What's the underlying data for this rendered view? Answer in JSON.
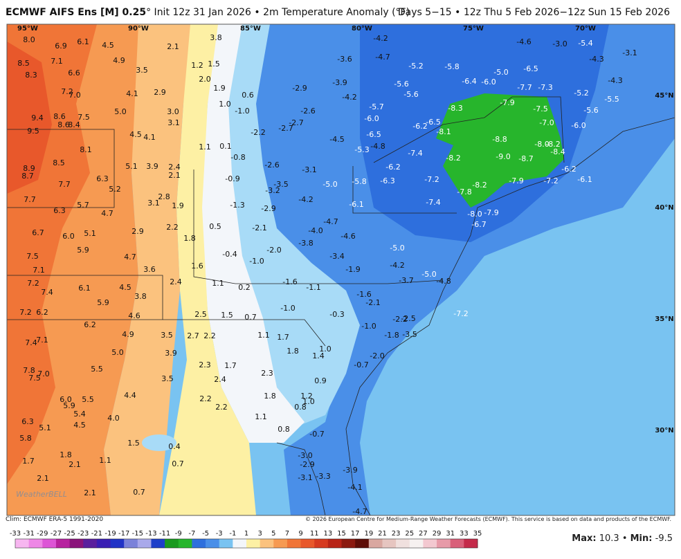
{
  "header": {
    "title": "ECMWF AIFS Ens [M] 0.25",
    "title_suffix": "° Init 12z 31 Jan 2026 • 2m Temperature Anomaly (°F)",
    "valid": "Days 5−15 • 12z Thu 5 Feb 2026−12z Sun 15 Feb 2026"
  },
  "map": {
    "longitudes": [
      "95°W",
      "90°W",
      "85°W",
      "80°W",
      "75°W",
      "70°W"
    ],
    "latitudes": [
      "45°N",
      "40°N",
      "35°N",
      "30°N"
    ],
    "logo": "WeatherBELL",
    "labels": [
      "8.0",
      "6.9",
      "6.1",
      "4.5",
      "2.1",
      "3.8",
      "8.5",
      "7.1",
      "4.9",
      "3.5",
      "1.2",
      "1.5",
      "8.3",
      "6.6",
      "2.0",
      "1.9",
      "0.6",
      "7.2",
      "7.0",
      "4.1",
      "2.9",
      "1.0",
      "-1.0",
      "9.4",
      "8.6",
      "7.5",
      "5.0",
      "3.0",
      "3.1",
      "9.5",
      "8.6",
      "8.4",
      "4.5",
      "4.1",
      "8.1",
      "1.1",
      "0.1",
      "-0.8",
      "8.5",
      "5.1",
      "3.9",
      "2.4",
      "2.1",
      "8.9",
      "8.7",
      "7.7",
      "6.3",
      "5.2",
      "-0.9",
      "7.7",
      "5.7",
      "4.7",
      "3.1",
      "2.8",
      "1.9",
      "-1.3",
      "6.3",
      "6.7",
      "6.0",
      "5.1",
      "2.9",
      "2.2",
      "1.8",
      "0.5",
      "7.5",
      "5.9",
      "4.7",
      "-0.4",
      "-1.0",
      "7.1",
      "3.6",
      "1.6",
      "7.2",
      "6.1",
      "4.5",
      "2.4",
      "1.1",
      "0.2",
      "7.4",
      "5.9",
      "3.8",
      "7.2",
      "6.2",
      "4.6",
      "2.5",
      "1.5",
      "0.7",
      "-1.0",
      "6.2",
      "7.4",
      "7.1",
      "4.9",
      "3.5",
      "2.7",
      "2.2",
      "1.1",
      "1.7",
      "5.0",
      "3.9",
      "1.8",
      "1.0",
      "1.4",
      "7.8",
      "7.5",
      "7.0",
      "5.5",
      "2.3",
      "1.7",
      "2.3",
      "3.5",
      "2.4",
      "0.9",
      "6.0",
      "5.9",
      "5.5",
      "4.4",
      "2.2",
      "1.8",
      "1.2",
      "1.0",
      "5.4",
      "4.5",
      "4.0",
      "2.2",
      "0.8",
      "6.3",
      "5.1",
      "1.1",
      "5.8",
      "1.5",
      "0.4",
      "0.8",
      "-0.7",
      "1.7",
      "1.8",
      "2.1",
      "1.1",
      "0.7",
      "-3.0",
      "-2.9",
      "2.1",
      "-3.3",
      "-3.1",
      "-3.9",
      "2.1",
      "0.7",
      "-4.1",
      "-4.7",
      "-4.2",
      "-4.6",
      "-3.0",
      "-5.4",
      "-3.1",
      "-3.6",
      "-4.7",
      "-5.2",
      "-5.8",
      "-4.3",
      "-6.5",
      "-5.0",
      "-2.9",
      "-3.9",
      "-5.6",
      "-6.4",
      "-6.0",
      "-7.7",
      "-7.3",
      "-4.3",
      "-5.2",
      "-4.2",
      "-5.6",
      "-5.7",
      "-7.9",
      "-7.5",
      "-5.5",
      "-8.3",
      "-2.6",
      "-2.7",
      "-2.7",
      "-6.0",
      "-6.2",
      "-6.5",
      "-8.1",
      "-7.0",
      "-5.6",
      "-6.0",
      "-2.2",
      "-4.5",
      "-6.5",
      "-8.8",
      "-8.0",
      "-8.2",
      "-8.4",
      "-5.3",
      "-4.8",
      "-7.4",
      "-9.0",
      "-8.2",
      "-8.7",
      "-2.6",
      "-3.1",
      "-6.2",
      "-6.2",
      "-3.5",
      "-3.2",
      "-5.0",
      "-5.8",
      "-6.3",
      "-7.2",
      "-8.2",
      "-7.9",
      "-7.2",
      "-6.1",
      "-7.8",
      "-4.2",
      "-2.9",
      "-6.1",
      "-7.4",
      "-8.0",
      "-7.9",
      "-6.7",
      "-2.1",
      "-4.0",
      "-4.7",
      "-4.6",
      "-3.8",
      "-2.0",
      "-5.0",
      "-3.4",
      "-4.2",
      "-1.9",
      "-5.0",
      "-3.7",
      "-4.8",
      "-1.6",
      "-1.1",
      "-1.6",
      "-2.1",
      "-0.3",
      "-2.2",
      "-2.5",
      "-7.2",
      "-1.0",
      "-1.8",
      "-3.5",
      "-2.0",
      "-0.7"
    ]
  },
  "footer": {
    "climatology": "Clim: ECMWF ERA-5 1991-2020",
    "copyright": "© 2026 European Centre for Medium-Range Weather Forecasts (ECMWF). This service is based on data and products of the ECMWF.",
    "max_label": "Max:",
    "max": "10.3",
    "separator": "•",
    "min_label": "Min:",
    "min": "-9.5"
  },
  "colorbar": {
    "ticks": [
      -33,
      -31,
      -29,
      -27,
      -25,
      -23,
      -21,
      -19,
      -17,
      -15,
      -13,
      -11,
      -9,
      -7,
      -5,
      -3,
      -1,
      1,
      3,
      5,
      7,
      9,
      11,
      13,
      15,
      17,
      19,
      21,
      23,
      25,
      27,
      29,
      31,
      33,
      35
    ],
    "colors": [
      "#f7b6f0",
      "#ee86e6",
      "#dd55d6",
      "#b7229f",
      "#8a137a",
      "#5a1f9d",
      "#3a1eb3",
      "#2133c6",
      "#7b82d9",
      "#a9a9ea",
      "#1e3fc9",
      "#1a9a1f",
      "#27b52c",
      "#2e6fdd",
      "#4a8fe8",
      "#79c3f1",
      "#f3f6fa",
      "#fdf0a4",
      "#fbc27e",
      "#f69a52",
      "#f07537",
      "#e8582b",
      "#d63a20",
      "#b82417",
      "#8b1a10",
      "#5e0e08",
      "#d9a7a0",
      "#e6c5c0",
      "#f0e0de",
      "#f6f1f0",
      "#f3c8d0",
      "#e79aa8",
      "#d9607a",
      "#c42a4a"
    ]
  }
}
